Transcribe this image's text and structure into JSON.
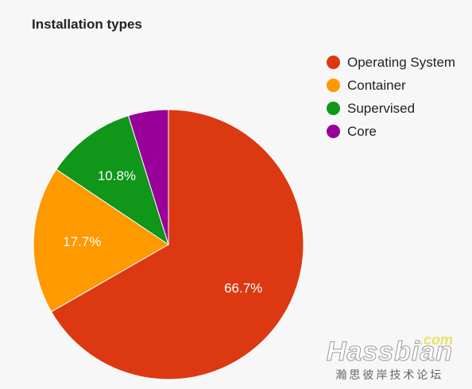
{
  "chart_data": {
    "type": "pie",
    "title": "Installation types",
    "slices": [
      {
        "label": "Operating System",
        "value": 66.7,
        "display": "66.7%",
        "color": "#dc3912"
      },
      {
        "label": "Container",
        "value": 17.7,
        "display": "17.7%",
        "color": "#ff9900"
      },
      {
        "label": "Supervised",
        "value": 10.8,
        "display": "10.8%",
        "color": "#109618"
      },
      {
        "label": "Core",
        "value": 4.8,
        "display": "",
        "color": "#990099"
      }
    ],
    "start_angle_deg": 0,
    "direction": "clockwise",
    "legend_position": "right"
  },
  "watermark": {
    "logo": "Hassbian",
    "suffix": ".com",
    "subtitle": "瀚思彼岸技术论坛"
  }
}
